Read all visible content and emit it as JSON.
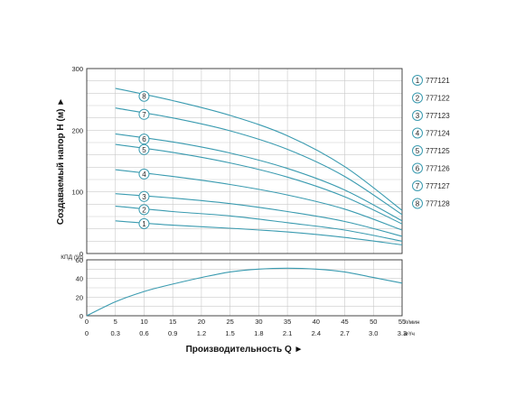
{
  "chart_data": [
    {
      "type": "line",
      "ylabel": "Создаваемый напор H (м) ►",
      "ylim": [
        0,
        300
      ],
      "yticks": [
        "300",
        "200",
        "100",
        "0"
      ],
      "xlim": [
        0,
        55
      ],
      "grid": true,
      "legend_placement": "right",
      "series": [
        {
          "name": "777121",
          "marker": "1",
          "x": [
            5,
            15,
            25,
            35,
            45,
            55
          ],
          "values": [
            53,
            46,
            41,
            35,
            26,
            14
          ]
        },
        {
          "name": "777122",
          "marker": "2",
          "x": [
            5,
            15,
            25,
            35,
            45,
            55
          ],
          "values": [
            77,
            68,
            61,
            50,
            38,
            20
          ]
        },
        {
          "name": "777123",
          "marker": "3",
          "x": [
            5,
            15,
            25,
            35,
            45,
            55
          ],
          "values": [
            97,
            90,
            81,
            68,
            52,
            28
          ]
        },
        {
          "name": "777124",
          "marker": "4",
          "x": [
            5,
            15,
            25,
            35,
            45,
            55
          ],
          "values": [
            136,
            125,
            112,
            95,
            72,
            38
          ]
        },
        {
          "name": "777125",
          "marker": "5",
          "x": [
            5,
            15,
            25,
            35,
            45,
            55
          ],
          "values": [
            177,
            164,
            147,
            124,
            92,
            48
          ]
        },
        {
          "name": "777126",
          "marker": "6",
          "x": [
            5,
            15,
            25,
            35,
            45,
            55
          ],
          "values": [
            194,
            181,
            163,
            138,
            103,
            53
          ]
        },
        {
          "name": "777127",
          "marker": "7",
          "x": [
            5,
            15,
            25,
            35,
            45,
            55
          ],
          "values": [
            236,
            220,
            199,
            169,
            125,
            63
          ]
        },
        {
          "name": "777128",
          "marker": "8",
          "x": [
            5,
            15,
            25,
            35,
            45,
            55
          ],
          "values": [
            268,
            248,
            224,
            191,
            141,
            70
          ]
        }
      ]
    },
    {
      "type": "line",
      "ylabel": "КПД (%)",
      "ylim": [
        0,
        60
      ],
      "yticks": [
        "60",
        "40",
        "20",
        "0"
      ],
      "xlabel": "Производительность Q ►",
      "xlim": [
        0,
        55
      ],
      "xticks_lpm": [
        "0",
        "5",
        "10",
        "15",
        "20",
        "25",
        "30",
        "35",
        "40",
        "45",
        "50",
        "55"
      ],
      "xticks_m3h": [
        "0",
        "0.3",
        "0.6",
        "0.9",
        "1.2",
        "1.5",
        "1.8",
        "2.1",
        "2.4",
        "2.7",
        "3.0",
        "3.3"
      ],
      "unit_lpm": "л/мин",
      "unit_m3h": "м³/ч",
      "grid": true,
      "series": [
        {
          "x": [
            0,
            5,
            10,
            15,
            20,
            25,
            30,
            35,
            40,
            45,
            50,
            55
          ],
          "values": [
            0,
            15,
            26,
            34,
            41,
            47,
            50,
            51,
            50,
            47,
            41,
            35
          ]
        }
      ]
    }
  ],
  "colors": {
    "curve": "#3a9bb0",
    "grid": "#c9c9c9",
    "axis": "#333333"
  }
}
